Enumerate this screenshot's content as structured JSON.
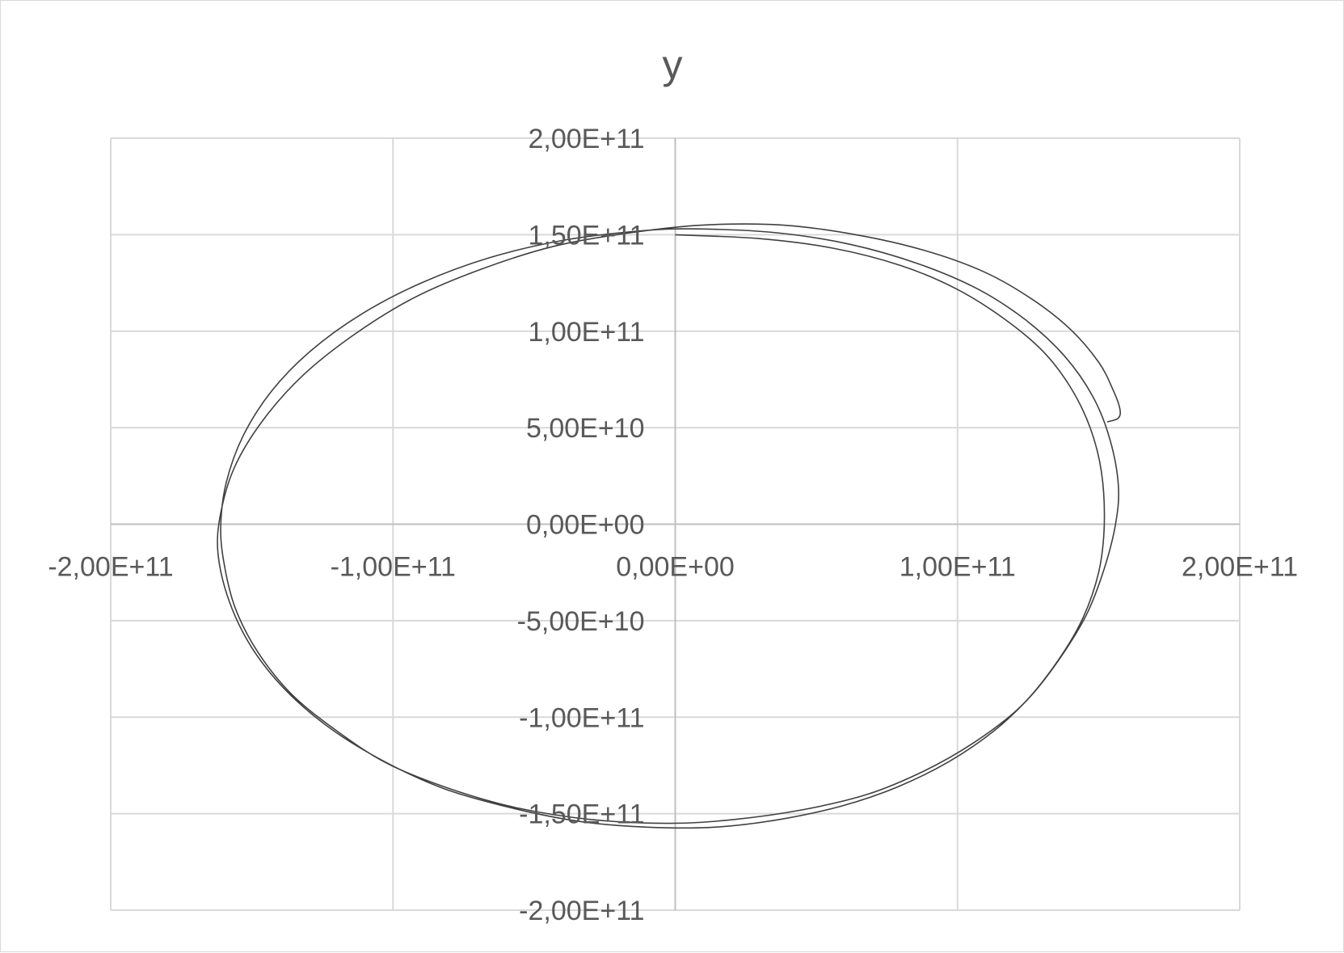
{
  "chart_data": {
    "type": "scatter",
    "title": "y",
    "xlabel": "",
    "ylabel": "",
    "xlim": [
      -200000000000,
      200000000000
    ],
    "ylim": [
      -200000000000,
      200000000000
    ],
    "x_ticks": [
      {
        "value": -200000000000,
        "label": "-2,00E+11"
      },
      {
        "value": -100000000000,
        "label": "-1,00E+11"
      },
      {
        "value": 0,
        "label": "0,00E+00"
      },
      {
        "value": 100000000000,
        "label": "1,00E+11"
      },
      {
        "value": 200000000000,
        "label": "2,00E+11"
      }
    ],
    "y_ticks": [
      {
        "value": 200000000000,
        "label": "2,00E+11"
      },
      {
        "value": 150000000000,
        "label": "1,50E+11"
      },
      {
        "value": 100000000000,
        "label": "1,00E+11"
      },
      {
        "value": 50000000000,
        "label": "5,00E+10"
      },
      {
        "value": 0,
        "label": "0,00E+00"
      },
      {
        "value": -50000000000,
        "label": "-5,00E+10"
      },
      {
        "value": -100000000000,
        "label": "-1,00E+11"
      },
      {
        "value": -150000000000,
        "label": "-1,50E+11"
      },
      {
        "value": -200000000000,
        "label": "-2,00E+11"
      }
    ],
    "grid": true,
    "legend": "none",
    "line_color": "#404040",
    "grid_color": "#d9d9d9",
    "series": [
      {
        "x": [
          0,
          29500000000,
          56000000000,
          80000000000,
          99500000000,
          116000000000,
          130000000000,
          140000000000,
          147000000000,
          151000000000,
          152000000000,
          150000000000,
          144000000000,
          134000000000,
          122000000000,
          106000000000,
          88000000000,
          68000000000,
          45000000000,
          21000000000,
          -2000000000,
          -30000000000,
          -56000000000,
          -80000000000,
          -102000000000,
          -120000000000,
          -136000000000,
          -148000000000,
          -156000000000,
          -160000000000,
          -161000000000,
          -159000000000,
          -153000000000,
          -143000000000,
          -129000000000,
          -111000000000,
          -90000000000,
          -66000000000,
          -40000000000,
          -12000000000,
          8000000000,
          36000000000,
          62000000000,
          86000000000,
          107000000000,
          124000000000,
          138000000000,
          148000000000,
          154000000000,
          157000000000,
          156000000000,
          152000000000,
          146000000000,
          137000000000,
          126000000000,
          113000000000,
          97000000000,
          79000000000,
          59000000000,
          37000000000,
          14000000000,
          -10000000000,
          -34000000000,
          -58000000000,
          -82000000000,
          -103000000000,
          -122000000000,
          -138000000000,
          -150000000000,
          -158000000000,
          -162000000000,
          -161000000000,
          -156000000000,
          -146000000000,
          -132000000000,
          -114000000000,
          -93000000000,
          -69000000000,
          -43000000000,
          -16000000000,
          10000000000,
          38000000000,
          64000000000,
          88000000000,
          109000000000,
          126000000000,
          140000000000,
          150000000000,
          155000000000,
          157500000000,
          157000000000,
          153000000000
        ],
        "y": [
          150000000000,
          148000000000,
          143000000000,
          134000000000,
          122000000000,
          107000000000,
          90000000000,
          71000000000,
          50000000000,
          27000000000,
          0,
          -25000000000,
          -50000000000,
          -74000000000,
          -95000000000,
          -113000000000,
          -128000000000,
          -140000000000,
          -148000000000,
          -153000000000,
          -155000000000,
          -153000000000,
          -147000000000,
          -137000000000,
          -124000000000,
          -107000000000,
          -88000000000,
          -66000000000,
          -43000000000,
          -19000000000,
          0,
          22000000000,
          46000000000,
          69000000000,
          90000000000,
          109000000000,
          125000000000,
          138000000000,
          147000000000,
          152000000000,
          153000000000,
          151000000000,
          145000000000,
          135000000000,
          122000000000,
          106000000000,
          87000000000,
          66000000000,
          44000000000,
          20000000000,
          0,
          -23000000000,
          -46000000000,
          -68000000000,
          -89000000000,
          -107000000000,
          -123000000000,
          -136000000000,
          -146000000000,
          -153000000000,
          -157000000000,
          -157000000000,
          -154000000000,
          -147000000000,
          -137000000000,
          -123000000000,
          -106000000000,
          -86000000000,
          -64000000000,
          -40000000000,
          -15000000000,
          6000000000,
          30000000000,
          54000000000,
          77000000000,
          98000000000,
          117000000000,
          132000000000,
          144000000000,
          151000000000,
          155000000000,
          155000000000,
          150000000000,
          142000000000,
          131000000000,
          117000000000,
          101000000000,
          84000000000,
          70000000000,
          60000000000,
          55000000000,
          53000000000
        ]
      }
    ]
  }
}
